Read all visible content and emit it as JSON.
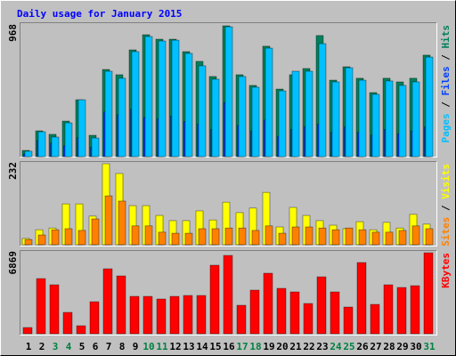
{
  "chart_data": [
    {
      "type": "bar",
      "title": "Daily usage for January 2015",
      "ylim": [
        0,
        968
      ],
      "yticks": [
        968
      ],
      "legend_separator": "/",
      "series": [
        {
          "name": "Pages",
          "color": "#00c0ff",
          "values": [
            40,
            184,
            145,
            250,
            421,
            138,
            632,
            580,
            777,
            889,
            856,
            862,
            764,
            672,
            573,
            961,
            593,
            514,
            803,
            487,
            632,
            632,
            836,
            553,
            658,
            566,
            461,
            560,
            527,
            553,
            737
          ]
        },
        {
          "name": "Files",
          "color": "#0040ff",
          "values": [
            20,
            120,
            100,
            80,
            140,
            70,
            330,
            310,
            350,
            290,
            280,
            300,
            260,
            240,
            200,
            400,
            230,
            190,
            270,
            150,
            200,
            220,
            240,
            180,
            220,
            180,
            160,
            200,
            170,
            190,
            220
          ]
        },
        {
          "name": "Hits",
          "color": "#00805c",
          "values": [
            46,
            191,
            165,
            263,
            421,
            158,
            645,
            606,
            790,
            902,
            869,
            869,
            777,
            705,
            593,
            968,
            606,
            527,
            817,
            500,
            606,
            652,
            896,
            566,
            665,
            580,
            474,
            580,
            553,
            580,
            751
          ]
        }
      ]
    },
    {
      "type": "bar",
      "ylim": [
        0,
        232
      ],
      "yticks": [
        232
      ],
      "legend_separator": "/",
      "series": [
        {
          "name": "Sites",
          "color": "#ff8000",
          "values": [
            15,
            28,
            43,
            46,
            41,
            74,
            140,
            125,
            54,
            54,
            36,
            33,
            33,
            46,
            46,
            48,
            48,
            41,
            54,
            33,
            51,
            51,
            48,
            43,
            48,
            43,
            36,
            36,
            41,
            54,
            46
          ]
        },
        {
          "name": "Visits",
          "color": "#ffff00",
          "values": [
            18,
            43,
            48,
            117,
            117,
            82,
            232,
            204,
            112,
            112,
            84,
            69,
            69,
            97,
            71,
            122,
            92,
            105,
            150,
            51,
            107,
            84,
            69,
            56,
            46,
            66,
            43,
            64,
            48,
            87,
            59
          ]
        }
      ]
    },
    {
      "type": "bar",
      "ylim": [
        0,
        6869
      ],
      "yticks": [
        6869
      ],
      "series": [
        {
          "name": "KBytes",
          "color": "#ff0000",
          "values": [
            528,
            4680,
            4152,
            1812,
            679,
            2717,
            5510,
            4906,
            3170,
            3170,
            2944,
            3170,
            3246,
            3246,
            5812,
            6643,
            2415,
            3699,
            5133,
            3850,
            3548,
            2566,
            4831,
            3548,
            2264,
            6039,
            2491,
            4152,
            3925,
            4076,
            6869
          ]
        }
      ],
      "categories": [
        "1",
        "2",
        "3",
        "4",
        "5",
        "6",
        "7",
        "8",
        "9",
        "10",
        "11",
        "12",
        "13",
        "14",
        "15",
        "16",
        "17",
        "18",
        "19",
        "20",
        "21",
        "22",
        "23",
        "24",
        "25",
        "26",
        "27",
        "28",
        "29",
        "30",
        "31"
      ],
      "category_colors": [
        "#000000",
        "#000000",
        "#008040",
        "#008040",
        "#000000",
        "#000000",
        "#000000",
        "#000000",
        "#000000",
        "#008040",
        "#008040",
        "#000000",
        "#000000",
        "#000000",
        "#000000",
        "#000000",
        "#008040",
        "#008040",
        "#000000",
        "#000000",
        "#000000",
        "#000000",
        "#000000",
        "#008040",
        "#008040",
        "#000000",
        "#000000",
        "#000000",
        "#000000",
        "#000000",
        "#008040"
      ]
    }
  ]
}
